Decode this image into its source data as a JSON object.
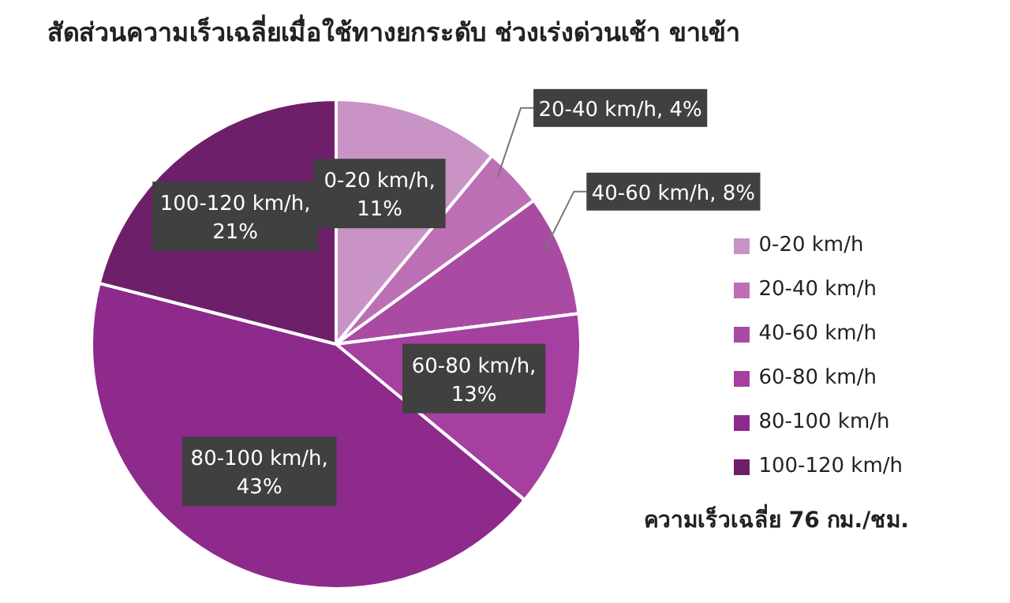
{
  "chart_data": {
    "type": "pie",
    "title": "สัดส่วนความเร็วเฉลี่ยเมื่อใช้ทางยกระดับ ช่วงเร่งด่วนเช้า ขาเข้า",
    "categories": [
      "0-20 km/h",
      "20-40 km/h",
      "40-60 km/h",
      "60-80 km/h",
      "80-100 km/h",
      "100-120 km/h"
    ],
    "values": [
      11,
      4,
      8,
      13,
      43,
      21
    ],
    "colors": [
      "#c993c6",
      "#bd6fb5",
      "#a94ba3",
      "#a53fa0",
      "#8e2a8c",
      "#6e1f6a"
    ],
    "value_labels": [
      "0-20 km/h, 11%",
      "20-40 km/h, 4%",
      "40-60 km/h, 8%",
      "60-80 km/h, 13%",
      "80-100 km/h, 43%",
      "100-120 km/h, 21%"
    ],
    "legend": "right",
    "annotations": [
      "ความเร็วเฉลี่ย 76 กม./ชม."
    ]
  }
}
